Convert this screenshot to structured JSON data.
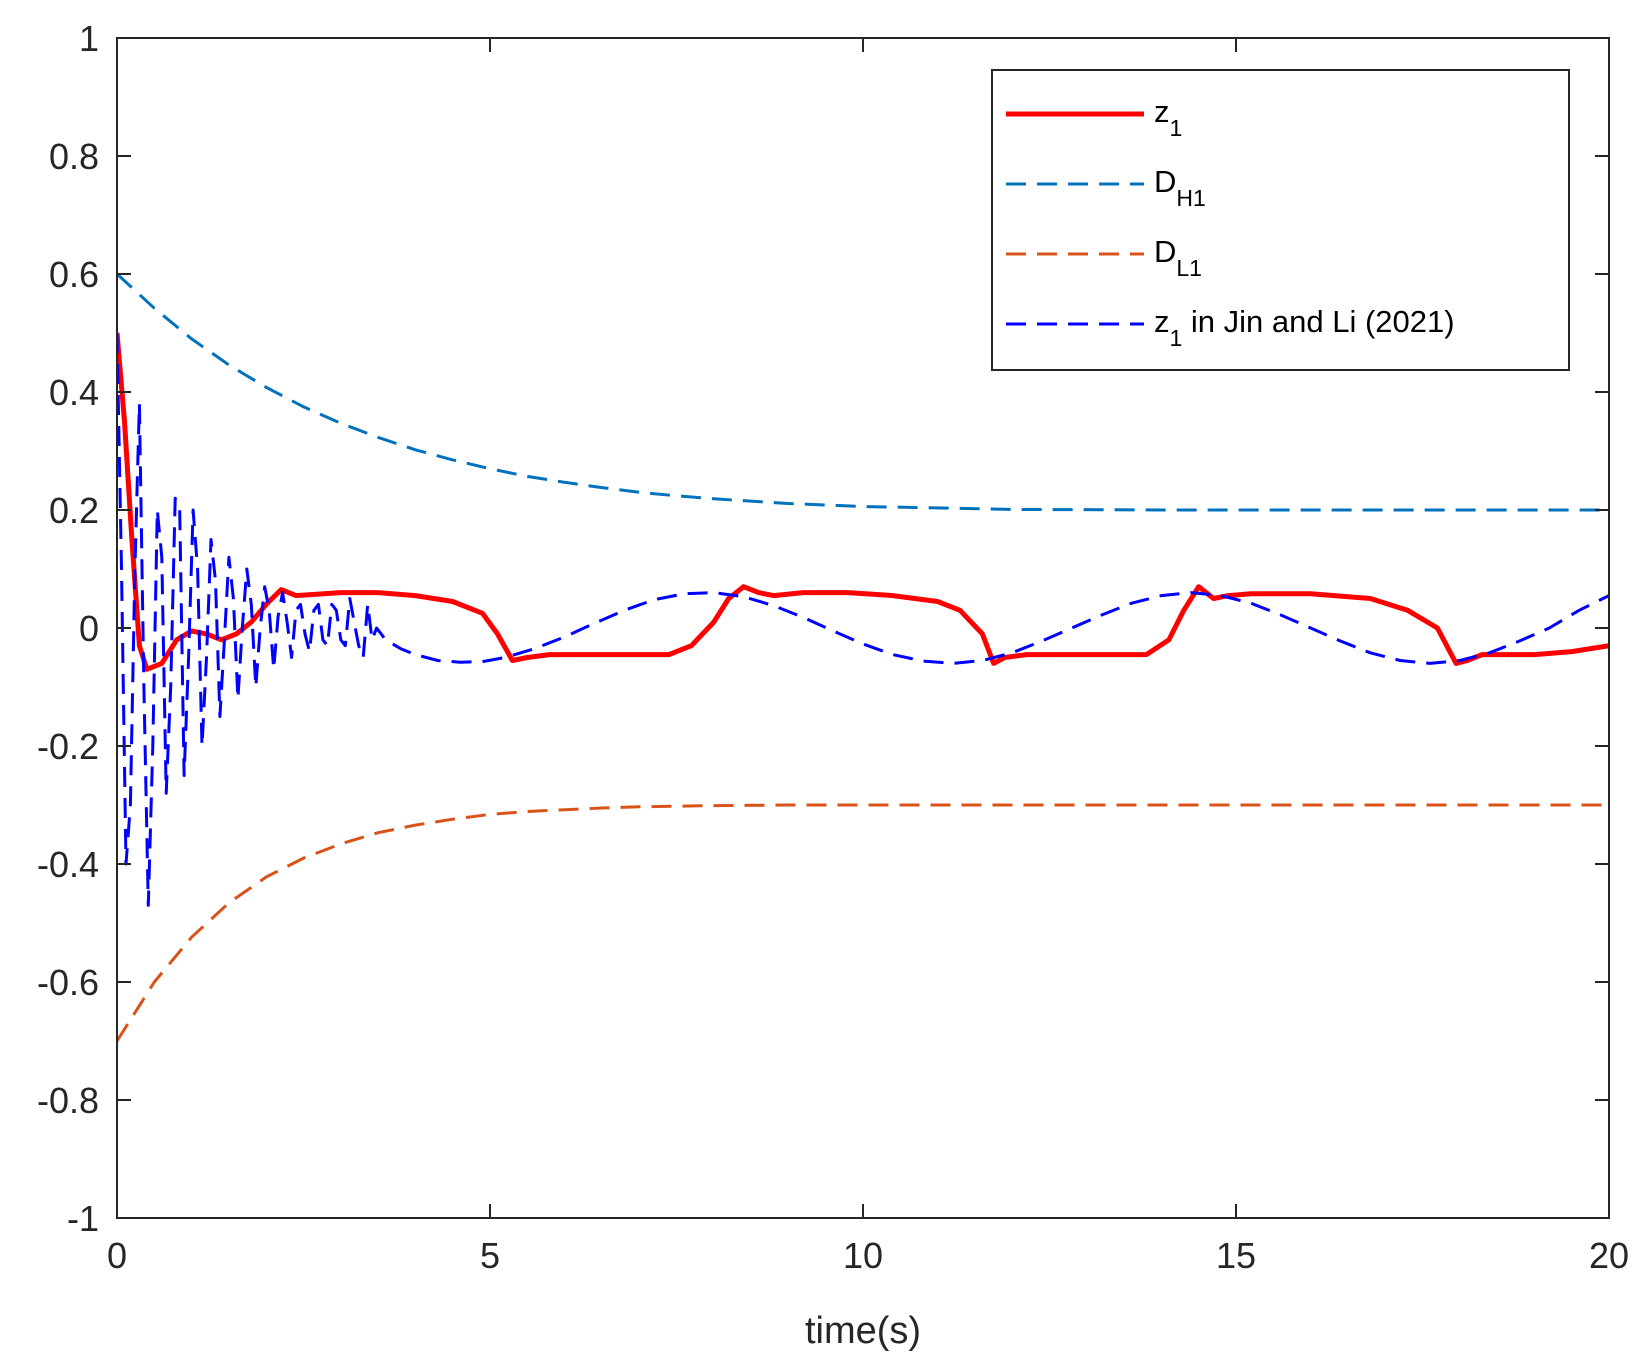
{
  "chart_data": {
    "type": "line",
    "title": "",
    "xlabel": "time(s)",
    "ylabel": "",
    "xlim": [
      0,
      20
    ],
    "ylim": [
      -1,
      1
    ],
    "xticks": [
      0,
      5,
      10,
      15,
      20
    ],
    "xtick_labels": [
      "0",
      "5",
      "10",
      "15",
      "20"
    ],
    "yticks": [
      -1,
      -0.8,
      -0.6,
      -0.4,
      -0.2,
      0,
      0.2,
      0.4,
      0.6,
      0.8,
      1
    ],
    "ytick_labels": [
      "-1",
      "-0.8",
      "-0.6",
      "-0.4",
      "-0.2",
      "0",
      "0.2",
      "0.4",
      "0.6",
      "0.8",
      "1"
    ],
    "grid": false,
    "legend_position": "top-right",
    "series": [
      {
        "name": "z_1",
        "legend_main": "z",
        "legend_sub": "1",
        "legend_rest": "",
        "color": "#ff0000",
        "style": "solid",
        "x": [
          0,
          0.1,
          0.2,
          0.3,
          0.4,
          0.6,
          0.8,
          1.0,
          1.2,
          1.4,
          1.6,
          1.8,
          2.0,
          2.2,
          2.4,
          3.0,
          3.5,
          4.0,
          4.5,
          4.9,
          5.1,
          5.3,
          5.5,
          5.8,
          6.0,
          6.5,
          7.0,
          7.4,
          7.7,
          8.0,
          8.2,
          8.4,
          8.6,
          8.8,
          9.2,
          9.8,
          10.4,
          11.0,
          11.3,
          11.6,
          11.75,
          11.9,
          12.2,
          12.5,
          13.0,
          13.5,
          13.8,
          14.1,
          14.3,
          14.5,
          14.7,
          14.9,
          15.2,
          16.0,
          16.8,
          17.3,
          17.7,
          17.95,
          18.1,
          18.3,
          18.5,
          19.0,
          19.5,
          20.0
        ],
        "y": [
          0.5,
          0.35,
          0.15,
          -0.03,
          -0.07,
          -0.06,
          -0.02,
          -0.005,
          -0.01,
          -0.02,
          -0.01,
          0.01,
          0.04,
          0.065,
          0.055,
          0.06,
          0.06,
          0.055,
          0.045,
          0.025,
          -0.01,
          -0.055,
          -0.05,
          -0.045,
          -0.045,
          -0.045,
          -0.045,
          -0.045,
          -0.03,
          0.01,
          0.05,
          0.07,
          0.06,
          0.055,
          0.06,
          0.06,
          0.055,
          0.045,
          0.03,
          -0.01,
          -0.06,
          -0.05,
          -0.045,
          -0.045,
          -0.045,
          -0.045,
          -0.045,
          -0.02,
          0.03,
          0.07,
          0.05,
          0.055,
          0.058,
          0.058,
          0.05,
          0.03,
          0.0,
          -0.06,
          -0.055,
          -0.045,
          -0.045,
          -0.045,
          -0.04,
          -0.03
        ]
      },
      {
        "name": "D_H1",
        "legend_main": "D",
        "legend_sub": "H1",
        "legend_rest": "",
        "color": "#0072bd",
        "style": "dashed",
        "x": [
          0,
          0.5,
          1,
          1.5,
          2,
          2.5,
          3,
          3.5,
          4,
          4.5,
          5,
          5.5,
          6,
          6.5,
          7,
          7.5,
          8,
          9,
          10,
          12,
          14,
          16,
          18,
          20
        ],
        "y": [
          0.6,
          0.542,
          0.49,
          0.446,
          0.408,
          0.375,
          0.347,
          0.323,
          0.302,
          0.285,
          0.27,
          0.257,
          0.247,
          0.238,
          0.23,
          0.224,
          0.219,
          0.211,
          0.206,
          0.201,
          0.2,
          0.2,
          0.2,
          0.2
        ]
      },
      {
        "name": "D_L1",
        "legend_main": "D",
        "legend_sub": "L1",
        "legend_rest": "",
        "color": "#d95319",
        "style": "dashed",
        "x": [
          0,
          0.5,
          1,
          1.5,
          2,
          2.5,
          3,
          3.5,
          4,
          4.5,
          5,
          5.5,
          6,
          6.5,
          7,
          8,
          9,
          10,
          12,
          14,
          16,
          18,
          20
        ],
        "y": [
          -0.7,
          -0.6,
          -0.524,
          -0.466,
          -0.422,
          -0.39,
          -0.366,
          -0.347,
          -0.334,
          -0.324,
          -0.316,
          -0.311,
          -0.308,
          -0.305,
          -0.303,
          -0.301,
          -0.3,
          -0.3,
          -0.3,
          -0.3,
          -0.3,
          -0.3,
          -0.3
        ]
      },
      {
        "name": "z_1 in Jin and Li (2021)",
        "legend_main": "z",
        "legend_sub": "1",
        "legend_rest": " in Jin and Li (2021)",
        "color": "#0000ff",
        "style": "dashed",
        "x": [
          0,
          0.06,
          0.12,
          0.18,
          0.24,
          0.3,
          0.36,
          0.42,
          0.48,
          0.54,
          0.6,
          0.66,
          0.72,
          0.78,
          0.84,
          0.9,
          0.96,
          1.02,
          1.08,
          1.14,
          1.2,
          1.26,
          1.32,
          1.38,
          1.44,
          1.5,
          1.56,
          1.62,
          1.68,
          1.74,
          1.8,
          1.86,
          1.92,
          1.98,
          2.04,
          2.1,
          2.16,
          2.22,
          2.28,
          2.34,
          2.4,
          2.46,
          2.52,
          2.58,
          2.64,
          2.7,
          2.76,
          2.82,
          2.88,
          2.94,
          3.0,
          3.06,
          3.12,
          3.18,
          3.24,
          3.3,
          3.36,
          3.42,
          3.48,
          3.6,
          3.8,
          4.0,
          4.3,
          4.6,
          4.9,
          5.2,
          5.6,
          6.0,
          6.4,
          6.8,
          7.2,
          7.6,
          8.0,
          8.4,
          8.8,
          9.2,
          9.6,
          10.0,
          10.4,
          10.8,
          11.2,
          11.6,
          12.0,
          12.4,
          12.8,
          13.2,
          13.6,
          14.0,
          14.4,
          14.8,
          15.2,
          15.6,
          16.0,
          16.4,
          16.8,
          17.2,
          17.6,
          18.0,
          18.4,
          18.8,
          19.2,
          19.6,
          20.0
        ],
        "y": [
          0.5,
          0.1,
          -0.4,
          -0.3,
          0.1,
          0.38,
          -0.1,
          -0.47,
          -0.2,
          0.2,
          0.12,
          -0.28,
          -0.1,
          0.22,
          0.2,
          -0.25,
          -0.05,
          0.2,
          0.1,
          -0.2,
          -0.05,
          0.15,
          0.08,
          -0.15,
          -0.02,
          0.12,
          0.05,
          -0.12,
          0.0,
          0.1,
          0.04,
          -0.1,
          0.0,
          0.07,
          0.03,
          -0.07,
          0.02,
          0.06,
          0.01,
          -0.05,
          0.03,
          0.04,
          -0.01,
          -0.04,
          0.03,
          0.04,
          -0.02,
          -0.03,
          0.04,
          0.03,
          -0.02,
          -0.03,
          0.05,
          0.01,
          -0.03,
          -0.05,
          0.04,
          -0.02,
          0.0,
          -0.02,
          -0.035,
          -0.045,
          -0.055,
          -0.058,
          -0.057,
          -0.05,
          -0.035,
          -0.015,
          0.008,
          0.03,
          0.048,
          0.058,
          0.06,
          0.053,
          0.038,
          0.018,
          -0.005,
          -0.027,
          -0.045,
          -0.056,
          -0.06,
          -0.055,
          -0.042,
          -0.022,
          0.0,
          0.022,
          0.042,
          0.055,
          0.06,
          0.055,
          0.042,
          0.022,
          0.0,
          -0.022,
          -0.042,
          -0.055,
          -0.06,
          -0.055,
          -0.042,
          -0.022,
          0.0,
          0.03,
          0.055
        ]
      }
    ]
  }
}
